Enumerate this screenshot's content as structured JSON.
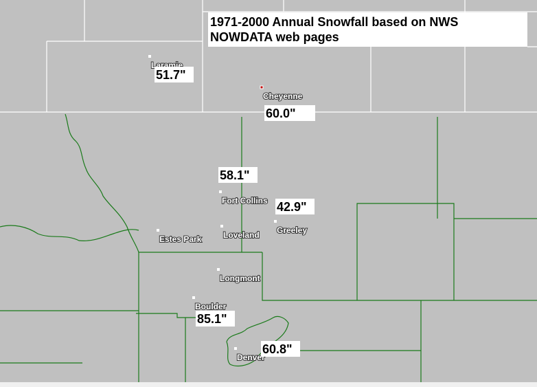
{
  "title": "1971-2000 Annual Snowfall based on NWS NOWDATA web pages",
  "cities": [
    "Laramie",
    "Cheyenne",
    "Fort Collins",
    "Greeley",
    "Estes Park",
    "Loveland",
    "Longmont",
    "Boulder",
    "Denver"
  ],
  "snowfall_labels": [
    "51.7\"",
    "60.0\"",
    "58.1\"",
    "42.9\"",
    "85.1\"",
    "60.8\""
  ]
}
